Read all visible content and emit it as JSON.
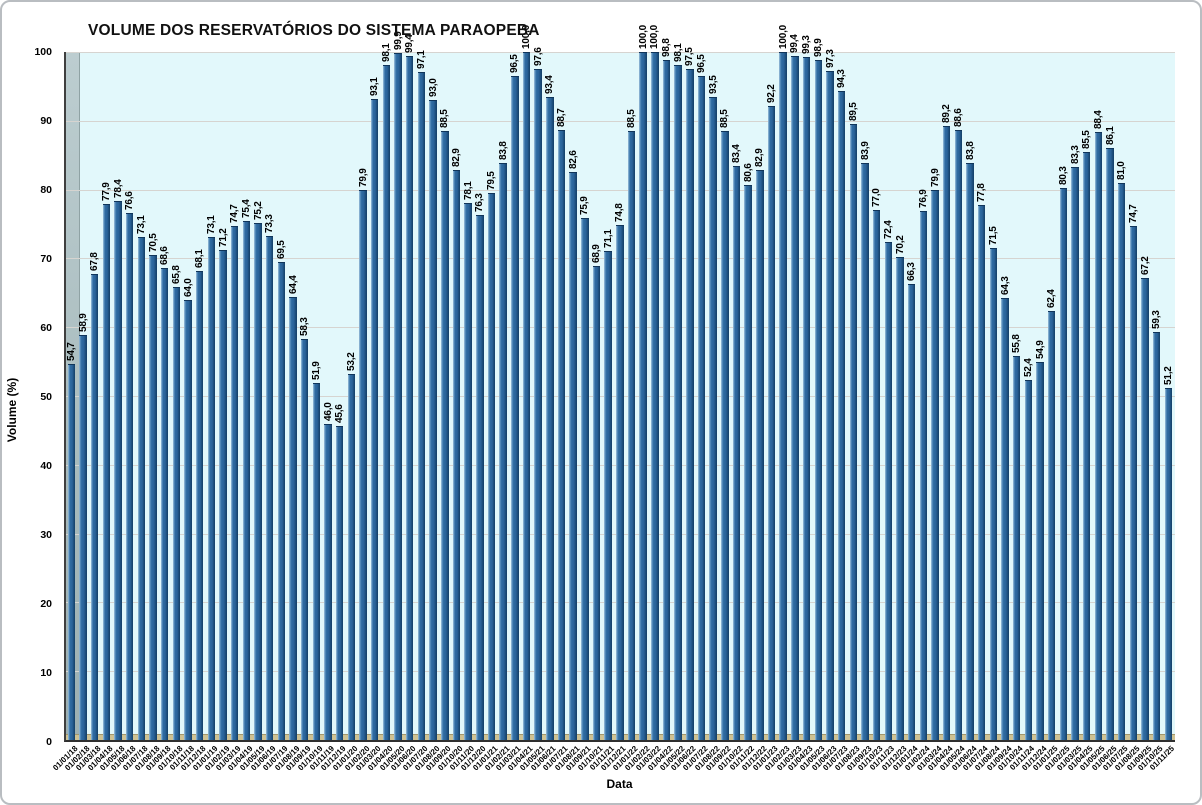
{
  "chart_data": {
    "type": "bar",
    "title": "VOLUME DOS RESERVATÓRIOS DO SISTEMA PARAOPEBA",
    "xlabel": "Data",
    "ylabel": "Volume (%)",
    "ylim": [
      0,
      100
    ],
    "yticks": [
      0,
      10,
      20,
      30,
      40,
      50,
      60,
      70,
      80,
      90,
      100
    ],
    "grid": true,
    "legend": "none",
    "value_label_format": "decimal-comma-1",
    "colors": {
      "bar_main": "#2A6399",
      "bar_highlight": "#A6C6DE",
      "bar_shadow": "#143F67",
      "plot_background": "#E2F8FB",
      "gridline": "#D6D4D0",
      "floor": "#CEC293",
      "wall": "#A8BBBD"
    },
    "categories": [
      "01/01/18",
      "01/02/18",
      "01/03/18",
      "01/04/18",
      "01/05/18",
      "01/06/18",
      "01/07/18",
      "01/08/18",
      "01/09/18",
      "01/10/18",
      "01/11/18",
      "01/12/18",
      "01/01/19",
      "01/02/19",
      "01/03/19",
      "01/04/19",
      "01/05/19",
      "01/06/19",
      "01/07/19",
      "01/08/19",
      "01/09/19",
      "01/10/19",
      "01/11/19",
      "01/12/19",
      "01/01/20",
      "01/02/20",
      "01/03/20",
      "01/04/20",
      "01/05/20",
      "01/06/20",
      "01/07/20",
      "01/08/20",
      "01/09/20",
      "01/10/20",
      "01/11/20",
      "01/12/20",
      "01/01/21",
      "01/02/21",
      "01/03/21",
      "01/04/21",
      "01/05/21",
      "01/06/21",
      "01/07/21",
      "01/08/21",
      "01/09/21",
      "01/10/21",
      "01/11/21",
      "01/12/21",
      "01/01/22",
      "01/02/22",
      "01/03/22",
      "01/04/22",
      "01/05/22",
      "01/06/22",
      "01/07/22",
      "01/08/22",
      "01/09/22",
      "01/10/22",
      "01/11/22",
      "01/12/22",
      "01/01/23",
      "01/02/23",
      "01/03/23",
      "01/04/23",
      "01/05/23",
      "01/06/23",
      "01/07/23",
      "01/08/23",
      "01/09/23",
      "01/10/23",
      "01/11/23",
      "01/12/23",
      "01/01/24",
      "01/02/24",
      "01/03/24",
      "01/04/24",
      "01/05/24",
      "01/06/24",
      "01/07/24",
      "01/08/24",
      "01/09/24",
      "01/10/24",
      "01/11/24",
      "01/12/24",
      "01/01/25",
      "01/02/25",
      "01/03/25",
      "01/04/25",
      "01/05/25",
      "01/06/25",
      "01/07/25",
      "01/08/25",
      "01/09/25",
      "01/10/25",
      "01/11/25"
    ],
    "values": [
      54.7,
      58.9,
      67.8,
      77.9,
      78.4,
      76.6,
      73.1,
      70.5,
      68.6,
      65.8,
      64.0,
      68.1,
      73.1,
      71.2,
      74.7,
      75.4,
      75.2,
      73.3,
      69.5,
      64.4,
      58.3,
      51.9,
      46.0,
      45.6,
      53.2,
      79.9,
      93.1,
      98.1,
      99.9,
      99.4,
      97.1,
      93.0,
      88.5,
      82.9,
      78.1,
      76.3,
      79.5,
      83.8,
      96.5,
      100.0,
      97.6,
      93.4,
      88.7,
      82.6,
      75.9,
      68.9,
      71.1,
      74.8,
      88.5,
      100.0,
      100.0,
      98.8,
      98.1,
      97.5,
      96.5,
      93.5,
      88.5,
      83.4,
      80.6,
      82.9,
      92.2,
      100.0,
      99.4,
      99.3,
      98.9,
      97.3,
      94.3,
      89.5,
      83.9,
      77.0,
      72.4,
      70.2,
      66.3,
      76.9,
      79.9,
      89.2,
      88.6,
      83.8,
      77.8,
      71.5,
      64.3,
      55.8,
      52.4,
      54.9,
      62.4,
      80.3,
      83.3,
      85.5,
      88.4,
      86.1,
      81.0,
      74.7,
      67.2,
      59.3,
      51.2
    ]
  }
}
